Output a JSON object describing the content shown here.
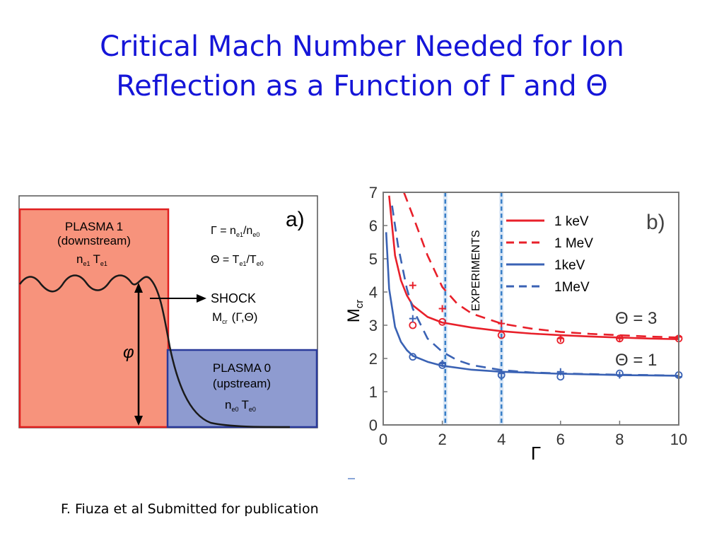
{
  "slide": {
    "title_line1": "Critical Mach Number Needed for Ion",
    "title_line2": "Reflection as a Function of Γ and Θ",
    "citation": "F. Fiuza et al Submitted for publication"
  },
  "diagram_a": {
    "panel_label": "a)",
    "plasma1": {
      "title": "PLASMA 1",
      "subtitle": "(downstream)",
      "n": "n",
      "n_sub": "e1",
      "t": "T",
      "t_sub": "e1"
    },
    "plasma0": {
      "title": "PLASMA 0",
      "subtitle": "(upstream)",
      "n": "n",
      "n_sub": "e0",
      "t": "T",
      "t_sub": "e0"
    },
    "eq_gamma": {
      "lhs": "Γ = n",
      "a_sub": "e1",
      "mid": "/n",
      "b_sub": "e0"
    },
    "eq_theta": {
      "lhs": "Θ = T",
      "a_sub": "e1",
      "mid": "/T",
      "b_sub": "e0"
    },
    "shock_label": "SHOCK",
    "shock_m": "M",
    "shock_m_sub": "cr",
    "shock_args": "(Γ,Θ)",
    "phi_label": "φ",
    "colors": {
      "plasma1_fill": "#f7937c",
      "plasma1_edge": "#e02020",
      "plasma0_fill": "#8e9bd0",
      "plasma0_edge": "#2a3a9a"
    }
  },
  "chart_data": {
    "type": "line",
    "panel_label": "b)",
    "xlabel": "Γ",
    "ylabel": "M",
    "ylabel_sub": "cr",
    "xlim": [
      0,
      10
    ],
    "ylim": [
      0,
      7
    ],
    "x_ticks": [
      "0",
      "2",
      "4",
      "6",
      "8",
      "10"
    ],
    "y_ticks": [
      "0",
      "1",
      "2",
      "3",
      "4",
      "5",
      "6",
      "7"
    ],
    "experiment_lines_x": [
      2.1,
      4.0
    ],
    "experiments_label": "EXPERIMENTS",
    "series": [
      {
        "name": "1 keV",
        "color": "#e8202a",
        "dash": "solid",
        "x": [
          0.2,
          0.4,
          0.6,
          0.8,
          1,
          1.5,
          2,
          3,
          4,
          5,
          6,
          7,
          8,
          9,
          10
        ],
        "y": [
          6.9,
          5.1,
          4.35,
          3.9,
          3.6,
          3.25,
          3.08,
          2.93,
          2.82,
          2.75,
          2.7,
          2.66,
          2.63,
          2.6,
          2.58
        ]
      },
      {
        "name": "1 MeV",
        "color": "#e8202a",
        "dash": "dashed",
        "x": [
          0.7,
          1,
          1.5,
          2,
          2.5,
          3,
          4,
          5,
          6,
          7,
          8,
          9,
          10
        ],
        "y": [
          7.0,
          6.3,
          5.1,
          4.15,
          3.65,
          3.35,
          3.05,
          2.9,
          2.8,
          2.74,
          2.7,
          2.66,
          2.63
        ]
      },
      {
        "name": "1keV",
        "color": "#3a62b4",
        "dash": "solid",
        "x": [
          0.1,
          0.2,
          0.4,
          0.6,
          0.8,
          1,
          1.5,
          2,
          3,
          4,
          5,
          6,
          7,
          8,
          9,
          10
        ],
        "y": [
          5.8,
          4.1,
          2.95,
          2.5,
          2.25,
          2.08,
          1.9,
          1.78,
          1.66,
          1.6,
          1.57,
          1.54,
          1.52,
          1.5,
          1.49,
          1.48
        ]
      },
      {
        "name": "1MeV",
        "color": "#3a62b4",
        "dash": "dashed",
        "x": [
          0.3,
          0.5,
          0.8,
          1,
          1.5,
          2,
          2.5,
          3,
          4,
          5,
          6,
          7,
          8,
          9,
          10
        ],
        "y": [
          6.6,
          5.4,
          4.1,
          3.5,
          2.6,
          2.2,
          1.95,
          1.8,
          1.65,
          1.58,
          1.55,
          1.53,
          1.51,
          1.5,
          1.48
        ]
      }
    ],
    "markers": [
      {
        "series": "1 keV sim",
        "color": "#e8202a",
        "symbol": "circle",
        "x": [
          1,
          2,
          4,
          6,
          8,
          10
        ],
        "y": [
          3.0,
          3.1,
          2.7,
          2.55,
          2.6,
          2.6
        ]
      },
      {
        "series": "1 MeV sim",
        "color": "#e8202a",
        "symbol": "plus",
        "x": [
          1,
          2,
          4,
          6,
          8,
          10
        ],
        "y": [
          4.2,
          3.5,
          3.05,
          2.6,
          2.6,
          2.65
        ]
      },
      {
        "series": "1keV sim",
        "color": "#3a62b4",
        "symbol": "circle",
        "x": [
          1,
          2,
          4,
          6,
          8,
          10
        ],
        "y": [
          2.05,
          1.8,
          1.5,
          1.45,
          1.55,
          1.5
        ]
      },
      {
        "series": "1MeV sim",
        "color": "#3a62b4",
        "symbol": "plus",
        "x": [
          1,
          2,
          4,
          6,
          8,
          10
        ],
        "y": [
          3.2,
          1.85,
          1.55,
          1.6,
          1.5,
          1.45
        ]
      }
    ],
    "annotations": [
      "Θ = 3",
      "Θ = 1"
    ],
    "legend": {
      "placement": "top-right",
      "entries": [
        "1 keV",
        "1 MeV",
        "1keV",
        "1MeV"
      ]
    }
  }
}
